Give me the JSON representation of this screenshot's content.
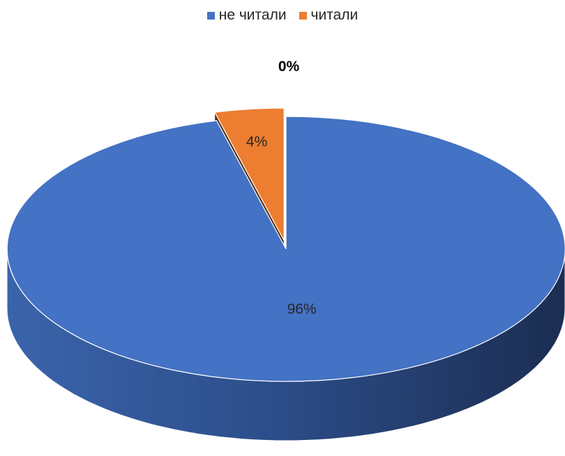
{
  "chart_data": {
    "type": "pie",
    "style": "3d-exploded",
    "title": "",
    "categories": [
      "не читали",
      "читали",
      ""
    ],
    "values": [
      96,
      4,
      0
    ],
    "labels": [
      "96%",
      "4%",
      "0%"
    ],
    "colors": [
      "#4472C4",
      "#ED7D31",
      "#A5A5A5"
    ],
    "legend": {
      "position": "top",
      "entries": [
        "не читали",
        "читали"
      ]
    }
  }
}
